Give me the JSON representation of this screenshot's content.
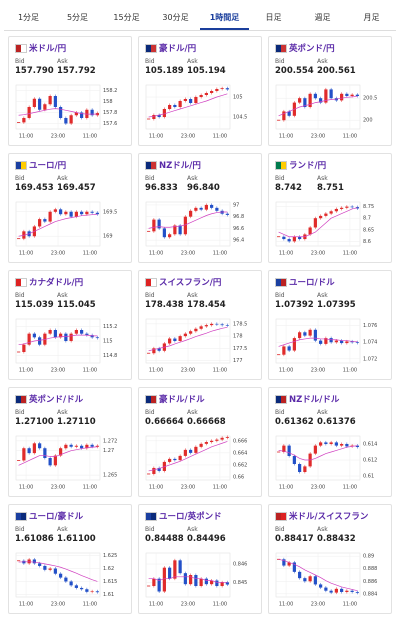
{
  "tabs": [
    "1分足",
    "5分足",
    "15分足",
    "30分足",
    "1時間足",
    "日足",
    "週足",
    "月足"
  ],
  "selected_tab": 4,
  "labels": {
    "bid": "Bid",
    "ask": "Ask"
  },
  "xticks": [
    "11:00",
    "23:00",
    "11:00"
  ],
  "panels": [
    {
      "name": "米ドル/円",
      "bid": "157.790",
      "ask": "157.792",
      "ylim": [
        157.5,
        158.3
      ],
      "yticks": [
        158.2,
        158,
        157.8,
        157.6
      ],
      "closes": [
        157.62,
        157.7,
        157.9,
        158.05,
        157.85,
        157.95,
        158.1,
        157.9,
        157.7,
        157.6,
        157.75,
        157.8,
        157.7,
        157.85,
        157.75,
        157.79
      ],
      "ma": [
        157.75,
        157.76,
        157.78,
        157.8,
        157.82,
        157.84,
        157.86,
        157.87,
        157.86,
        157.84,
        157.82,
        157.8,
        157.78,
        157.77,
        157.77,
        157.77
      ]
    },
    {
      "name": "豪ドル/円",
      "bid": "105.189",
      "ask": "105.194",
      "ylim": [
        104.2,
        105.3
      ],
      "yticks": [
        105,
        104.5
      ],
      "closes": [
        104.45,
        104.55,
        104.5,
        104.7,
        104.8,
        104.75,
        104.9,
        104.95,
        104.85,
        105.0,
        105.05,
        105.1,
        105.15,
        105.2,
        105.22,
        105.19
      ],
      "ma": [
        104.5,
        104.52,
        104.55,
        104.58,
        104.62,
        104.66,
        104.7,
        104.74,
        104.78,
        104.82,
        104.86,
        104.9,
        104.95,
        105.0,
        105.04,
        105.08
      ]
    },
    {
      "name": "英ポンド/円",
      "bid": "200.554",
      "ask": "200.561",
      "ylim": [
        199.8,
        200.8
      ],
      "yticks": [
        200.5,
        200
      ],
      "closes": [
        200.0,
        200.2,
        200.1,
        200.4,
        200.5,
        200.3,
        200.6,
        200.5,
        200.4,
        200.7,
        200.5,
        200.45,
        200.6,
        200.55,
        200.58,
        200.55
      ],
      "ma": [
        200.1,
        200.15,
        200.2,
        200.25,
        200.3,
        200.33,
        200.36,
        200.4,
        200.42,
        200.45,
        200.47,
        200.48,
        200.5,
        200.52,
        200.53,
        200.54
      ]
    },
    {
      "name": "ユーロ/円",
      "bid": "169.453",
      "ask": "169.457",
      "ylim": [
        168.8,
        169.7
      ],
      "yticks": [
        169.5,
        169
      ],
      "closes": [
        168.95,
        169.1,
        169.0,
        169.2,
        169.35,
        169.3,
        169.5,
        169.55,
        169.45,
        169.5,
        169.4,
        169.5,
        169.45,
        169.5,
        169.48,
        169.45
      ],
      "ma": [
        169.0,
        169.02,
        169.05,
        169.1,
        169.15,
        169.2,
        169.25,
        169.3,
        169.33,
        169.36,
        169.38,
        169.4,
        169.42,
        169.43,
        169.44,
        169.45
      ]
    },
    {
      "name": "NZドル/円",
      "bid": "96.833",
      "ask": "96.840",
      "ylim": [
        96.3,
        97.05
      ],
      "yticks": [
        97,
        96.8,
        96.6,
        96.4
      ],
      "closes": [
        96.55,
        96.75,
        96.6,
        96.45,
        96.5,
        96.65,
        96.5,
        96.8,
        96.9,
        96.95,
        96.92,
        97.0,
        96.95,
        96.9,
        96.85,
        96.83
      ],
      "ma": [
        96.6,
        96.62,
        96.63,
        96.62,
        96.62,
        96.63,
        96.64,
        96.66,
        96.7,
        96.74,
        96.78,
        96.82,
        96.85,
        96.87,
        96.88,
        96.88
      ]
    },
    {
      "name": "ランド/円",
      "bid": "8.742",
      "ask": "8.751",
      "ylim": [
        8.58,
        8.77
      ],
      "yticks": [
        8.75,
        8.7,
        8.65,
        8.6
      ],
      "closes": [
        8.62,
        8.61,
        8.6,
        8.62,
        8.61,
        8.63,
        8.66,
        8.7,
        8.71,
        8.72,
        8.73,
        8.74,
        8.745,
        8.75,
        8.748,
        8.742
      ],
      "ma": [
        8.64,
        8.63,
        8.62,
        8.62,
        8.62,
        8.62,
        8.63,
        8.64,
        8.66,
        8.68,
        8.7,
        8.71,
        8.72,
        8.73,
        8.74,
        8.745
      ]
    },
    {
      "name": "カナダドル/円",
      "bid": "115.039",
      "ask": "115.045",
      "ylim": [
        114.7,
        115.3
      ],
      "yticks": [
        115.2,
        115,
        114.8
      ],
      "closes": [
        114.85,
        114.95,
        115.1,
        115.05,
        114.95,
        115.1,
        115.15,
        115.05,
        115.1,
        115.0,
        115.1,
        115.15,
        115.1,
        115.08,
        115.05,
        115.04
      ],
      "ma": [
        114.95,
        114.96,
        114.98,
        115.0,
        115.01,
        115.02,
        115.04,
        115.05,
        115.06,
        115.06,
        115.07,
        115.08,
        115.08,
        115.08,
        115.07,
        115.07
      ]
    },
    {
      "name": "スイスフラン/円",
      "bid": "178.438",
      "ask": "178.454",
      "ylim": [
        176.9,
        178.7
      ],
      "yticks": [
        178.5,
        178,
        177.5,
        177
      ],
      "closes": [
        177.3,
        177.5,
        177.4,
        177.7,
        177.9,
        177.8,
        178.0,
        178.1,
        178.2,
        178.3,
        178.4,
        178.45,
        178.5,
        178.48,
        178.45,
        178.44
      ],
      "ma": [
        177.4,
        177.45,
        177.5,
        177.55,
        177.6,
        177.68,
        177.75,
        177.82,
        177.9,
        177.98,
        178.05,
        178.12,
        178.2,
        178.26,
        178.32,
        178.36
      ]
    },
    {
      "name": "ユーロ/ドル",
      "bid": "1.07392",
      "ask": "1.07395",
      "ylim": [
        1.0715,
        1.0768
      ],
      "yticks": [
        1.076,
        1.074,
        1.072
      ],
      "closes": [
        1.0725,
        1.0735,
        1.073,
        1.0745,
        1.0752,
        1.0748,
        1.0755,
        1.0742,
        1.0738,
        1.0745,
        1.074,
        1.0742,
        1.0739,
        1.0741,
        1.074,
        1.07392
      ],
      "ma": [
        1.0735,
        1.0737,
        1.0739,
        1.0741,
        1.0743,
        1.0744,
        1.0745,
        1.0745,
        1.0744,
        1.0744,
        1.0743,
        1.0743,
        1.0742,
        1.0742,
        1.0741,
        1.0741
      ]
    },
    {
      "name": "英ポンド/ドル",
      "bid": "1.27100",
      "ask": "1.27110",
      "ylim": [
        1.264,
        1.273
      ],
      "yticks": [
        1.272,
        1.27,
        1.265
      ],
      "closes": [
        1.268,
        1.2705,
        1.2695,
        1.2715,
        1.2705,
        1.2685,
        1.267,
        1.269,
        1.2705,
        1.2712,
        1.2708,
        1.271,
        1.2705,
        1.2712,
        1.2708,
        1.271
      ],
      "ma": [
        1.267,
        1.2675,
        1.268,
        1.2685,
        1.269,
        1.269,
        1.2688,
        1.2688,
        1.2692,
        1.2696,
        1.27,
        1.2702,
        1.2704,
        1.2706,
        1.2707,
        1.2708
      ]
    },
    {
      "name": "豪ドル/ドル",
      "bid": "0.66664",
      "ask": "0.66668",
      "ylim": [
        0.6595,
        0.6668
      ],
      "yticks": [
        0.666,
        0.664,
        0.662,
        0.66
      ],
      "closes": [
        0.6605,
        0.6615,
        0.661,
        0.6625,
        0.663,
        0.6628,
        0.6635,
        0.6645,
        0.664,
        0.665,
        0.6655,
        0.6658,
        0.666,
        0.6662,
        0.6665,
        0.66664
      ],
      "ma": [
        0.661,
        0.6612,
        0.6614,
        0.6617,
        0.662,
        0.6623,
        0.6626,
        0.663,
        0.6634,
        0.6638,
        0.6642,
        0.6646,
        0.665,
        0.6653,
        0.6656,
        0.6659
      ]
    },
    {
      "name": "NZドル/ドル",
      "bid": "0.61362",
      "ask": "0.61376",
      "ylim": [
        0.6095,
        0.615
      ],
      "yticks": [
        0.614,
        0.612,
        0.61
      ],
      "closes": [
        0.613,
        0.6138,
        0.6125,
        0.6115,
        0.6105,
        0.6112,
        0.6128,
        0.6138,
        0.6142,
        0.614,
        0.6142,
        0.6138,
        0.614,
        0.6137,
        0.6138,
        0.61362
      ],
      "ma": [
        0.6132,
        0.6131,
        0.6129,
        0.6126,
        0.6122,
        0.612,
        0.612,
        0.6122,
        0.6125,
        0.6128,
        0.613,
        0.6132,
        0.6134,
        0.6136,
        0.6137,
        0.6138
      ]
    },
    {
      "name": "ユーロ/豪ドル",
      "bid": "1.61086",
      "ask": "1.61100",
      "ylim": [
        1.609,
        1.626
      ],
      "yticks": [
        1.625,
        1.62,
        1.615,
        1.61
      ],
      "closes": [
        1.623,
        1.622,
        1.6235,
        1.622,
        1.621,
        1.6195,
        1.62,
        1.618,
        1.6165,
        1.615,
        1.6135,
        1.6125,
        1.612,
        1.611,
        1.6112,
        1.61086
      ],
      "ma": [
        1.6225,
        1.6226,
        1.6226,
        1.6225,
        1.6222,
        1.6218,
        1.6214,
        1.621,
        1.6205,
        1.6198,
        1.619,
        1.6182,
        1.6173,
        1.6165,
        1.6157,
        1.615
      ]
    },
    {
      "name": "ユーロ/英ポンド",
      "bid": "0.84488",
      "ask": "0.84496",
      "ylim": [
        0.8442,
        0.8466
      ],
      "yticks": [
        0.846,
        0.845
      ],
      "closes": [
        0.8448,
        0.8452,
        0.8445,
        0.8458,
        0.8452,
        0.8462,
        0.8455,
        0.8449,
        0.8454,
        0.8448,
        0.8452,
        0.8449,
        0.8451,
        0.8448,
        0.845,
        0.84488
      ],
      "ma": [
        0.8452,
        0.8452,
        0.8451,
        0.8452,
        0.8452,
        0.8453,
        0.8453,
        0.8453,
        0.8453,
        0.8452,
        0.8452,
        0.8451,
        0.8451,
        0.845,
        0.845,
        0.845
      ]
    },
    {
      "name": "米ドル/スイスフラン",
      "bid": "0.88417",
      "ask": "0.88432",
      "ylim": [
        0.8835,
        0.8905
      ],
      "yticks": [
        0.89,
        0.888,
        0.886,
        0.884
      ],
      "closes": [
        0.8895,
        0.8885,
        0.889,
        0.8875,
        0.8865,
        0.886,
        0.8868,
        0.8855,
        0.885,
        0.8845,
        0.8842,
        0.8848,
        0.8843,
        0.8845,
        0.8843,
        0.88417
      ],
      "ma": [
        0.8895,
        0.8893,
        0.889,
        0.8887,
        0.8883,
        0.8878,
        0.8874,
        0.887,
        0.8866,
        0.8861,
        0.8857,
        0.8854,
        0.8851,
        0.8849,
        0.8847,
        0.8845
      ]
    }
  ]
}
